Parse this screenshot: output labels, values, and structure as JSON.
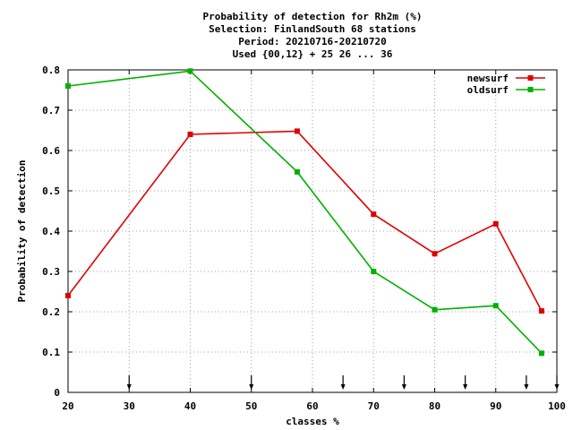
{
  "chart_data": {
    "type": "line",
    "title_lines": [
      "Probability of detection  for Rh2m (%)",
      "Selection: FinlandSouth     68 stations",
      "Period: 20210716-20210720",
      "Used {00,12} + 25 26 ... 36"
    ],
    "xlabel": "classes %",
    "ylabel": "Probability of detection",
    "xlim": [
      20,
      100
    ],
    "ylim": [
      0,
      0.8
    ],
    "x_ticks": [
      20,
      30,
      40,
      50,
      60,
      70,
      80,
      90,
      100
    ],
    "y_ticks": [
      0,
      0.1,
      0.2,
      0.3,
      0.4,
      0.5,
      0.6,
      0.7,
      0.8
    ],
    "x_tick_labels": [
      "20",
      "30",
      "40",
      "50",
      "60",
      "70",
      "80",
      "90",
      "100"
    ],
    "y_tick_labels": [
      "0",
      "0.1",
      "0.2",
      "0.3",
      "0.4",
      "0.5",
      "0.6",
      "0.7",
      "0.8"
    ],
    "grid": true,
    "legend_position": "top-right",
    "arrow_markers_x": [
      30,
      50,
      65,
      75,
      85,
      95,
      100
    ],
    "series": [
      {
        "name": "newsurf",
        "color": "#e00000",
        "x": [
          20,
          40,
          57.5,
          70,
          80,
          90,
          97.5
        ],
        "y": [
          0.24,
          0.64,
          0.648,
          0.442,
          0.344,
          0.418,
          0.202
        ]
      },
      {
        "name": "oldsurf",
        "color": "#00b000",
        "x": [
          20,
          40,
          57.5,
          70,
          80,
          90,
          97.5
        ],
        "y": [
          0.76,
          0.797,
          0.547,
          0.3,
          0.205,
          0.215,
          0.097
        ]
      }
    ]
  }
}
